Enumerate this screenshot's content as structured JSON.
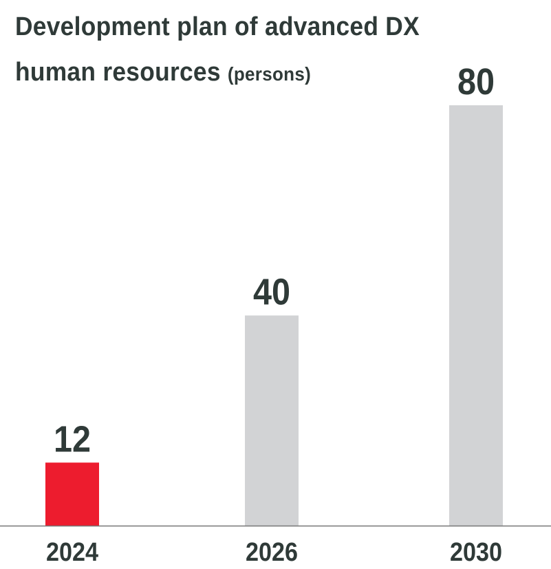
{
  "chart_data": {
    "type": "bar",
    "title_line1": "Development plan of advanced DX",
    "title_line2": "human resources",
    "unit": "(persons)",
    "categories": [
      "2024",
      "2026",
      "2030"
    ],
    "values": [
      12,
      40,
      80
    ],
    "data_labels": [
      "12",
      "40",
      "80"
    ],
    "colors": [
      "#ed1c2e",
      "#d2d3d5",
      "#d2d3d5"
    ],
    "ylim": [
      0,
      80
    ],
    "grid": false,
    "legend": "none"
  }
}
